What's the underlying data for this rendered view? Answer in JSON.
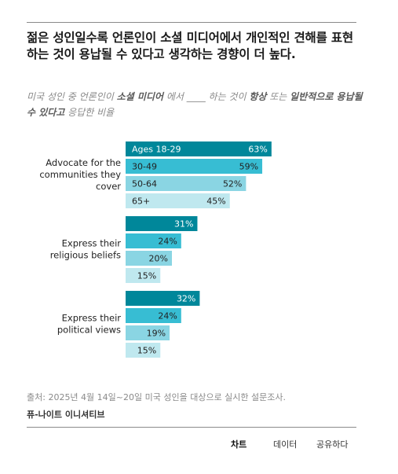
{
  "header": {
    "title": "젊은 성인일수록 언론인이 소셜 미디어에서 개인적인 견해를 표현하는 것이 용납될 수 있다고 생각하는 경향이 더 높다.",
    "subtitle_parts": [
      {
        "text": "미국 성인 중 언론인이 ",
        "bold": false
      },
      {
        "text": "소셜 미디어",
        "bold": true
      },
      {
        "text": " 에서 ____ 하는 것이 ",
        "bold": false
      },
      {
        "text": "항상",
        "bold": true
      },
      {
        "text": " 또는 ",
        "bold": false
      },
      {
        "text": "일반적으로 용납될 수 있다고",
        "bold": true
      },
      {
        "text": " 응답한 비율",
        "bold": false
      }
    ]
  },
  "colors": {
    "18-29": "#00879a",
    "30-49": "#37bdd3",
    "50-64": "#8ad5e3",
    "65+": "#bfe8ef",
    "title": "#1a1a1a",
    "muted": "#8a8a8a"
  },
  "chart_data": {
    "type": "bar",
    "orientation": "horizontal",
    "series_names": [
      "Ages 18-29",
      "30-49",
      "50-64",
      "65+"
    ],
    "groups": [
      {
        "label": "Advocate for the communities they cover",
        "label_lines": [
          "Advocate for the",
          "communities they",
          "cover"
        ],
        "values": [
          63,
          59,
          52,
          45
        ]
      },
      {
        "label": "Express their religious beliefs",
        "label_lines": [
          "Express their",
          "religious beliefs"
        ],
        "values": [
          31,
          24,
          20,
          15
        ]
      },
      {
        "label": "Express their political views",
        "label_lines": [
          "Express their",
          "political views"
        ],
        "values": [
          32,
          24,
          19,
          15
        ]
      }
    ],
    "value_suffix": "%",
    "xlim": [
      0,
      100
    ],
    "legend": "inside first group bars"
  },
  "footer": {
    "source": "출처: 2025년 4월 14일~20일 미국 성인을 대상으로 실시한 설문조사.",
    "org": "퓨-나이트 이니셔티브"
  },
  "tabs": {
    "chart": "차트",
    "data": "데이터",
    "share": "공유하다"
  }
}
